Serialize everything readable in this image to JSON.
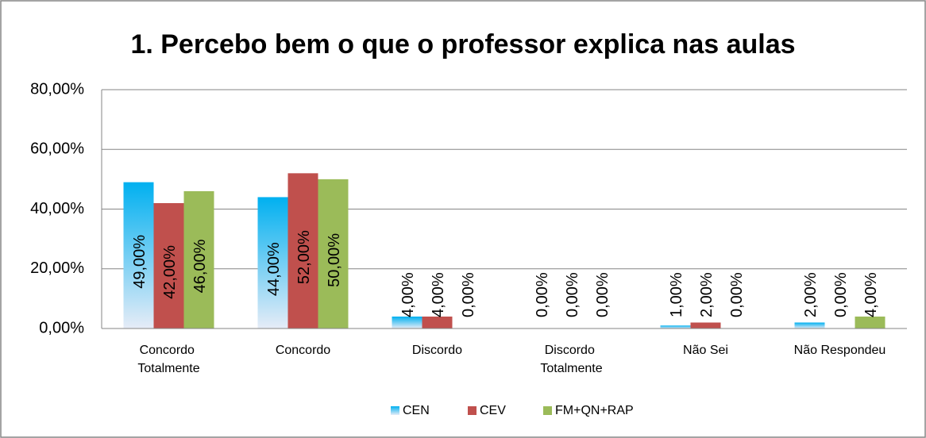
{
  "chart_data": {
    "type": "bar",
    "title": "1. Percebo bem o que o professor explica nas aulas",
    "categories": [
      "Concordo Totalmente",
      "Concordo",
      "Discordo",
      "Discordo Totalmente",
      "Não Sei",
      "Não Respondeu"
    ],
    "series": [
      {
        "name": "CEN",
        "color": "#00b0f0",
        "values": [
          49,
          44,
          4,
          0,
          1,
          2
        ],
        "value_labels": [
          "49,00%",
          "44,00%",
          "4,00%",
          "0,00%",
          "1,00%",
          "2,00%"
        ]
      },
      {
        "name": "CEV",
        "color": "#c0504d",
        "values": [
          42,
          52,
          4,
          0,
          2,
          0
        ],
        "value_labels": [
          "42,00%",
          "52,00%",
          "4,00%",
          "0,00%",
          "2,00%",
          "0,00%"
        ]
      },
      {
        "name": "FM+QN+RAP",
        "color": "#9bbb59",
        "values": [
          46,
          50,
          0,
          0,
          0,
          4
        ],
        "value_labels": [
          "46,00%",
          "50,00%",
          "0,00%",
          "0,00%",
          "0,00%",
          "4,00%"
        ]
      }
    ],
    "ylim": [
      0,
      80
    ],
    "yticks": [
      {
        "value": 0,
        "label": "0,00%"
      },
      {
        "value": 20,
        "label": "20,00%"
      },
      {
        "value": 40,
        "label": "40,00%"
      },
      {
        "value": 60,
        "label": "60,00%"
      },
      {
        "value": 80,
        "label": "80,00%"
      }
    ],
    "grid": true,
    "legend": "bottom"
  }
}
